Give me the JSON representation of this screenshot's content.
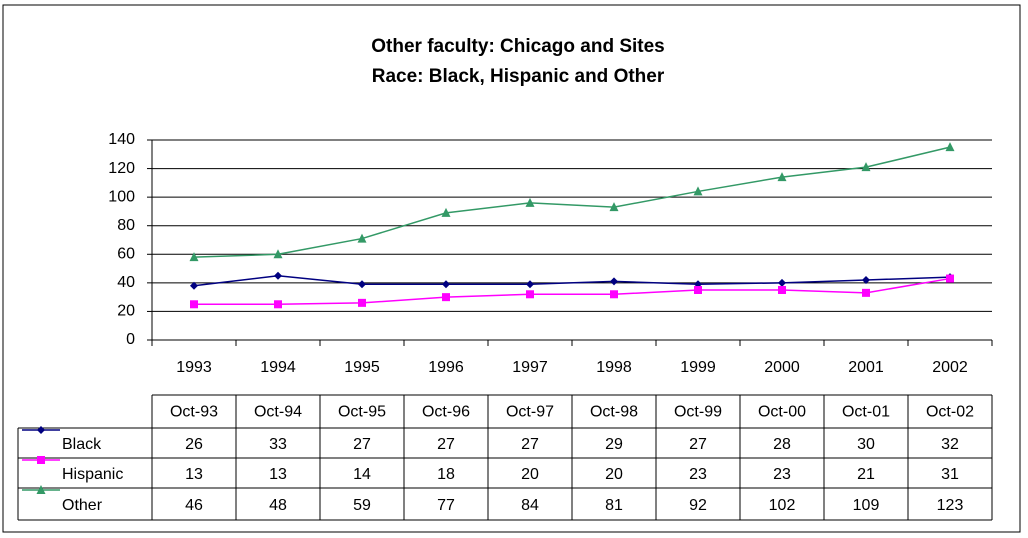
{
  "chart_data": {
    "type": "line",
    "title": "Other faculty: Chicago and Sites",
    "subtitle": "Race: Black, Hispanic and Other",
    "categories": [
      "1993",
      "1994",
      "1995",
      "1996",
      "1997",
      "1998",
      "1999",
      "2000",
      "2001",
      "2002"
    ],
    "series": [
      {
        "name": "Black",
        "color": "#000080",
        "marker": "diamond",
        "values": [
          38,
          45,
          39,
          39,
          39,
          41,
          39,
          40,
          42,
          44
        ]
      },
      {
        "name": "Hispanic",
        "color": "#ff00ff",
        "marker": "square",
        "values": [
          25,
          25,
          26,
          30,
          32,
          32,
          35,
          35,
          33,
          43
        ]
      },
      {
        "name": "Other",
        "color": "#339966",
        "marker": "triangle",
        "values": [
          58,
          60,
          71,
          89,
          96,
          93,
          104,
          114,
          121,
          135
        ]
      }
    ],
    "ylim": [
      0,
      140
    ],
    "yticks": [
      0,
      20,
      40,
      60,
      80,
      100,
      120,
      140
    ],
    "grid": true,
    "table": {
      "columns": [
        "Oct-93",
        "Oct-94",
        "Oct-95",
        "Oct-96",
        "Oct-97",
        "Oct-98",
        "Oct-99",
        "Oct-00",
        "Oct-01",
        "Oct-02"
      ],
      "rows": [
        {
          "values": [
            26,
            33,
            27,
            27,
            27,
            29,
            27,
            28,
            30,
            32
          ]
        },
        {
          "values": [
            13,
            13,
            14,
            18,
            20,
            20,
            23,
            23,
            21,
            31
          ]
        },
        {
          "values": [
            46,
            48,
            59,
            77,
            84,
            81,
            92,
            102,
            109,
            123
          ]
        }
      ]
    }
  }
}
